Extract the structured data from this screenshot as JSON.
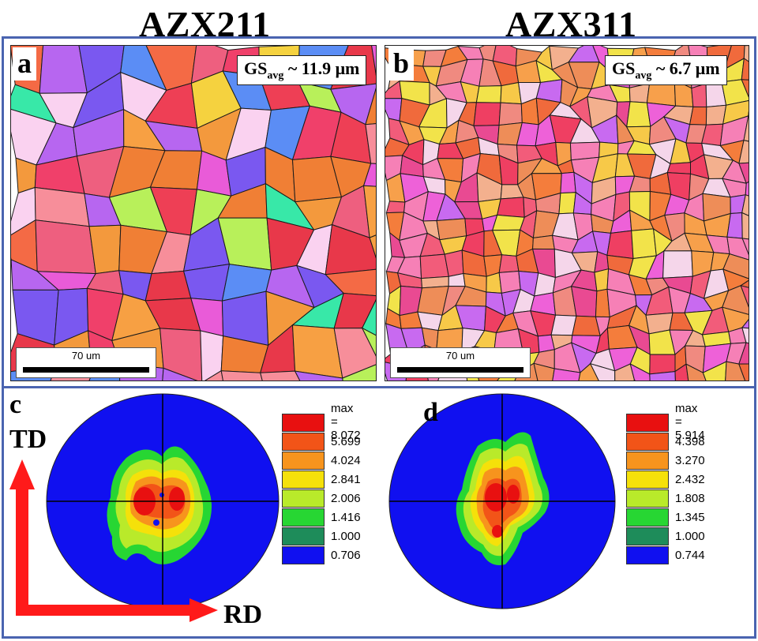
{
  "figure": {
    "columns": [
      {
        "title": "AZX211"
      },
      {
        "title": "AZX311"
      }
    ],
    "panels": {
      "a": {
        "letter": "a",
        "gs_prefix": "GS",
        "gs_sub": "avg",
        "gs_value": " ~ 11.9 μm",
        "scale_label": "70 um"
      },
      "b": {
        "letter": "b",
        "gs_prefix": "GS",
        "gs_sub": "avg",
        "gs_value": " ~ 6.7 μm",
        "scale_label": "70 um"
      },
      "c": {
        "letter": "c",
        "legend": [
          "max = 8.072",
          "5.699",
          "4.024",
          "2.841",
          "2.006",
          "1.416",
          "1.000",
          "0.706"
        ]
      },
      "d": {
        "letter": "d",
        "legend": [
          "max = 5.914",
          "4.398",
          "3.270",
          "2.432",
          "1.808",
          "1.345",
          "1.000",
          "0.744"
        ]
      }
    },
    "axes": {
      "td": "TD",
      "rd": "RD"
    },
    "legend_colors": [
      "#e81010",
      "#f25418",
      "#f7941d",
      "#f5e10a",
      "#b9ea2a",
      "#27d633",
      "#1e8c5a",
      "#1010f0"
    ],
    "accent_frame_color": "#4a64b0"
  }
}
